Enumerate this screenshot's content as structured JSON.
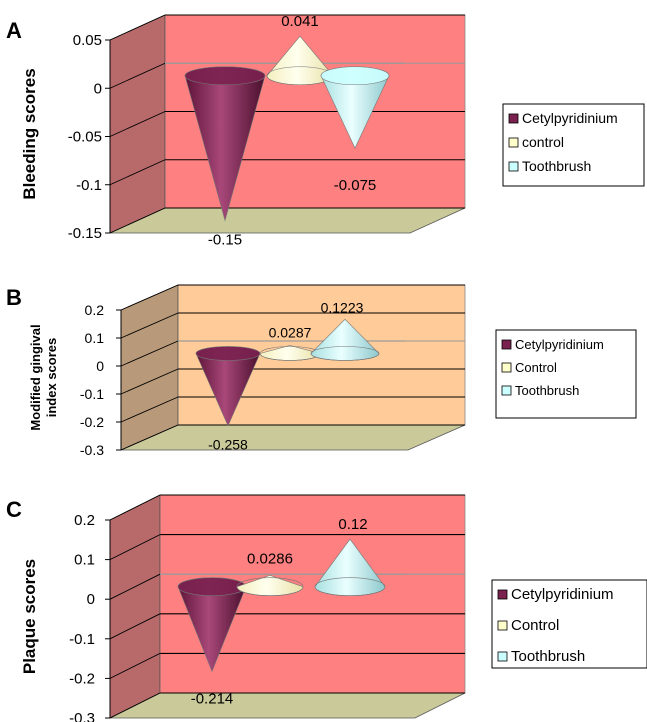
{
  "chart_data": [
    {
      "type": "bar",
      "panel_label": "A",
      "ylabel": "Bleeding scores",
      "ylim": [
        -0.15,
        0.05
      ],
      "yticks": [
        0.05,
        0,
        -0.05,
        -0.1,
        -0.15
      ],
      "ytick_labels": [
        "0.05",
        "0",
        "-0.05",
        "-0.1",
        "-0.15"
      ],
      "series": [
        {
          "name": "Cetylpyridinium",
          "values": [
            -0.15
          ],
          "value_label": "-0.15"
        },
        {
          "name": "control",
          "values": [
            0.041
          ],
          "value_label": "0.041"
        },
        {
          "name": "Toothbrush",
          "values": [
            -0.075
          ],
          "value_label": "-0.075"
        }
      ],
      "wall_color": "#ff8080",
      "floor_color": "#c9c999",
      "legend_position": "right"
    },
    {
      "type": "bar",
      "panel_label": "B",
      "ylabel": "Modified gingival index scores",
      "ylim": [
        -0.3,
        0.2
      ],
      "yticks": [
        0.2,
        0.1,
        0,
        -0.1,
        -0.2,
        -0.3
      ],
      "ytick_labels": [
        "0.2",
        "0.1",
        "0",
        "-0.1",
        "-0.2",
        "-0.3"
      ],
      "series": [
        {
          "name": "Cetylpyridinium",
          "values": [
            -0.258
          ],
          "value_label": "-0.258"
        },
        {
          "name": "Control",
          "values": [
            0.0287
          ],
          "value_label": "0.0287"
        },
        {
          "name": "Toothbrush",
          "values": [
            0.1223
          ],
          "value_label": "0.1223"
        }
      ],
      "wall_color": "#ffcc99",
      "floor_color": "#c9c999",
      "legend_position": "right"
    },
    {
      "type": "bar",
      "panel_label": "C",
      "ylabel": "Plaque scores",
      "ylim": [
        -0.3,
        0.2
      ],
      "yticks": [
        0.2,
        0.1,
        0,
        -0.1,
        -0.2,
        -0.3
      ],
      "ytick_labels": [
        "0.2",
        "0.1",
        "0",
        "-0.1",
        "-0.2",
        "-0.3"
      ],
      "series": [
        {
          "name": "Cetylpyridinium",
          "values": [
            -0.214
          ],
          "value_label": "-0.214"
        },
        {
          "name": "Control",
          "values": [
            0.0286
          ],
          "value_label": "0.0286"
        },
        {
          "name": "Toothbrush",
          "values": [
            0.12
          ],
          "value_label": "0.12"
        }
      ],
      "wall_color": "#ff8080",
      "floor_color": "#c9c999",
      "legend_position": "right"
    }
  ],
  "series_colors": [
    "#7a2150",
    "#ffffcc",
    "#ccffff"
  ]
}
